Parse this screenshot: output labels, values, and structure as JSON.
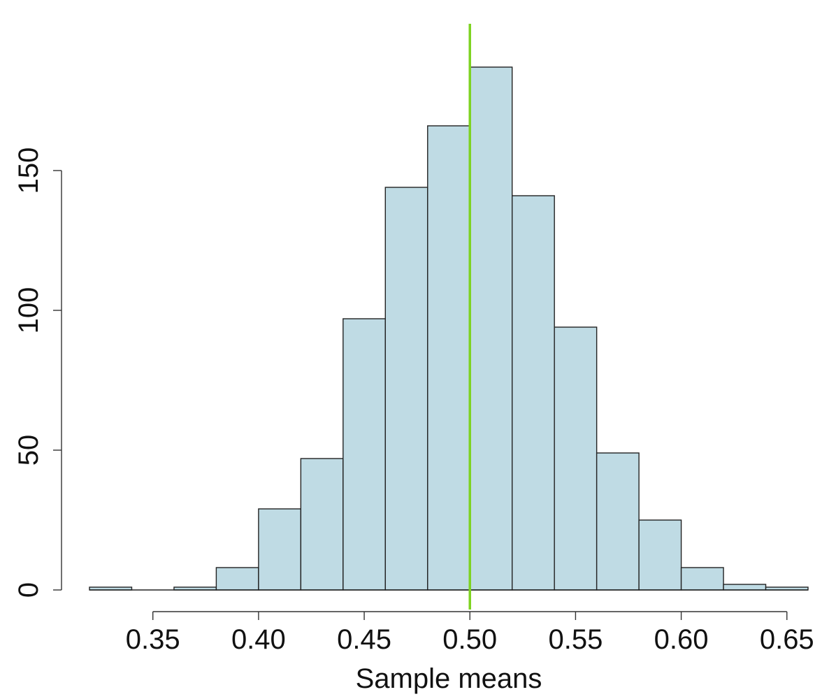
{
  "colors": {
    "bar_fill": "#bfdbe4",
    "bar_stroke": "#222222",
    "reference_line": "#7ed321",
    "axis": "#333333"
  },
  "chart_data": {
    "type": "bar",
    "subtype": "histogram",
    "title": "",
    "xlabel": "Sample means",
    "ylabel": "",
    "bin_edges": [
      0.32,
      0.34,
      0.36,
      0.38,
      0.4,
      0.42,
      0.44,
      0.46,
      0.48,
      0.5,
      0.52,
      0.54,
      0.56,
      0.58,
      0.6,
      0.62,
      0.64,
      0.66
    ],
    "counts": [
      1,
      0,
      1,
      8,
      29,
      47,
      97,
      144,
      166,
      187,
      141,
      94,
      49,
      25,
      8,
      2,
      1
    ],
    "reference_line_x": 0.5,
    "xlim": [
      0.32,
      0.66
    ],
    "ylim": [
      0,
      195
    ],
    "x_ticks": [
      0.35,
      0.4,
      0.45,
      0.5,
      0.55,
      0.6,
      0.65
    ],
    "x_tick_labels": [
      "0.35",
      "0.40",
      "0.45",
      "0.50",
      "0.55",
      "0.60",
      "0.65"
    ],
    "y_ticks": [
      0,
      50,
      100,
      150
    ],
    "y_tick_labels": [
      "0",
      "50",
      "100",
      "150"
    ],
    "grid": false,
    "legend": "none"
  }
}
